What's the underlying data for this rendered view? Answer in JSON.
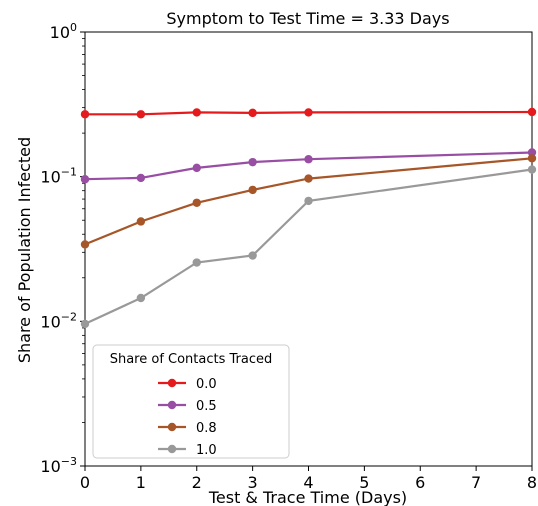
{
  "chart_data": {
    "type": "line",
    "title": "Symptom to Test Time = 3.33 Days",
    "xlabel": "Test & Trace Time (Days)",
    "ylabel": "Share of Population Infected",
    "xlim": [
      0,
      8
    ],
    "ylim": [
      0.001,
      1
    ],
    "yscale": "log",
    "grid": false,
    "x_ticks": [
      "0",
      "1",
      "2",
      "3",
      "4",
      "5",
      "6",
      "7",
      "8"
    ],
    "y_ticks": [
      {
        "value": 0.001,
        "base": "10",
        "exp": "−3"
      },
      {
        "value": 0.01,
        "base": "10",
        "exp": "−2"
      },
      {
        "value": 0.1,
        "base": "10",
        "exp": "−1"
      },
      {
        "value": 1,
        "base": "10",
        "exp": "0"
      }
    ],
    "legend": {
      "title": "Share of Contacts Traced",
      "placement": "lower-left"
    },
    "series": [
      {
        "name": "0.0",
        "color": "#e41a1c",
        "x": [
          0,
          1,
          2,
          3,
          4,
          8
        ],
        "values": [
          0.27,
          0.27,
          0.278,
          0.276,
          0.278,
          0.28
        ]
      },
      {
        "name": "0.5",
        "color": "#984ea3",
        "x": [
          0,
          1,
          2,
          3,
          4,
          8
        ],
        "values": [
          0.096,
          0.098,
          0.115,
          0.126,
          0.132,
          0.147
        ]
      },
      {
        "name": "0.8",
        "color": "#a65628",
        "x": [
          0,
          1,
          2,
          3,
          4,
          8
        ],
        "values": [
          0.034,
          0.049,
          0.066,
          0.081,
          0.097,
          0.134
        ]
      },
      {
        "name": "1.0",
        "color": "#999999",
        "x": [
          0,
          1,
          2,
          3,
          4,
          8
        ],
        "values": [
          0.0096,
          0.0145,
          0.0255,
          0.0285,
          0.068,
          0.112
        ]
      }
    ]
  }
}
